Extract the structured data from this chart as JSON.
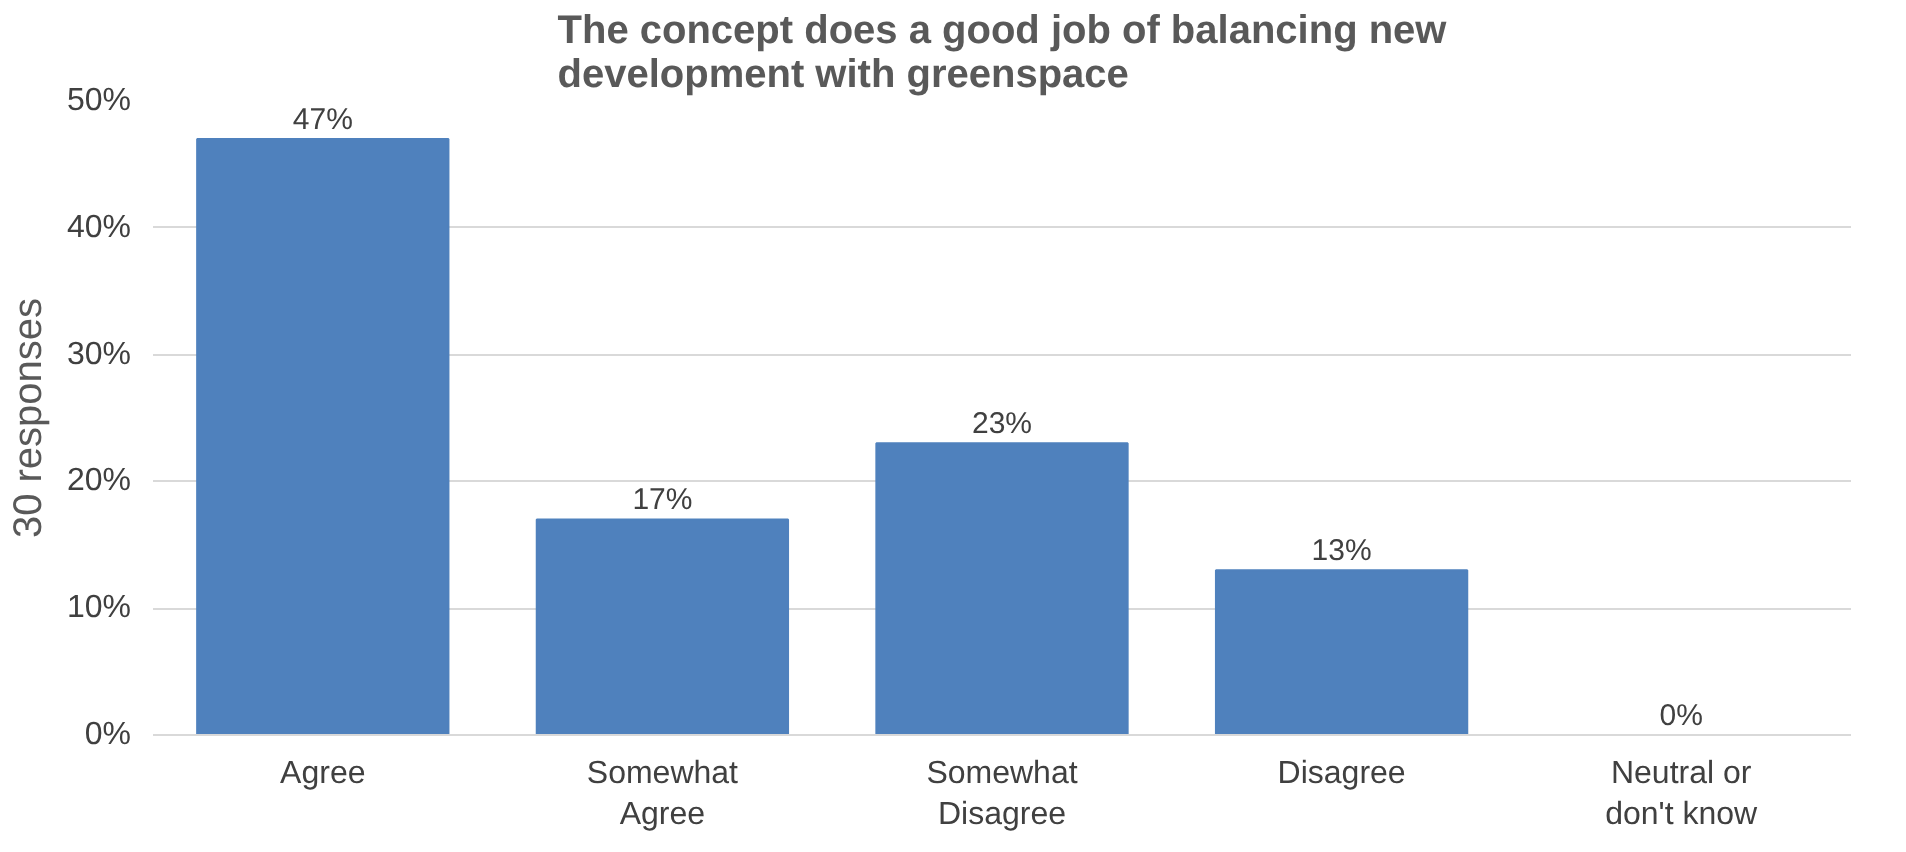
{
  "chart_data": {
    "type": "bar",
    "title": "The concept does a good job of balancing new development with greenspace",
    "ylabel": "30 responses",
    "categories": [
      "Agree",
      "Somewhat Agree",
      "Somewhat Disagree",
      "Disagree",
      "Neutral or don't know"
    ],
    "values": [
      47,
      17,
      23,
      13,
      0
    ],
    "color": "#4f81bd",
    "value_labels": [
      "47%",
      "17%",
      "23%",
      "13%",
      "0%"
    ],
    "ylim": [
      0,
      50
    ],
    "yticks": [
      {
        "value": 0,
        "label": "0%"
      },
      {
        "value": 10,
        "label": "10%"
      },
      {
        "value": 20,
        "label": "20%"
      },
      {
        "value": 30,
        "label": "30%"
      },
      {
        "value": 40,
        "label": "40%"
      },
      {
        "value": 50,
        "label": "50%"
      }
    ],
    "grid": "y"
  }
}
